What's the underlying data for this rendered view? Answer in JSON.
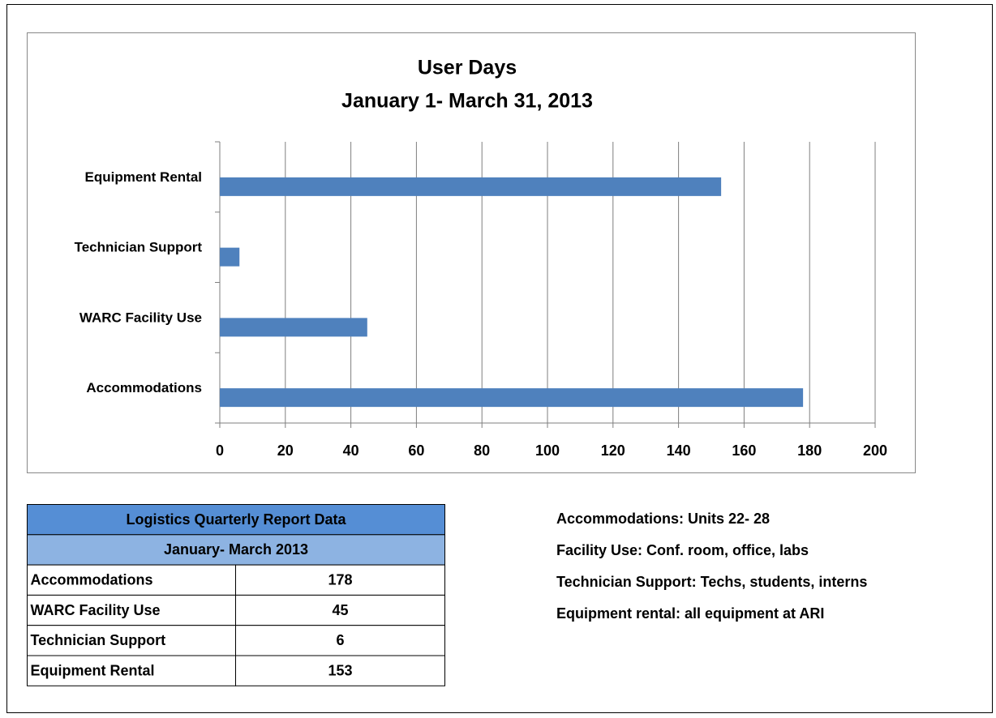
{
  "chart_data": {
    "type": "bar",
    "orientation": "horizontal",
    "title": "User Days",
    "subtitle": "January 1- March 31, 2013",
    "categories": [
      "Accommodations",
      "WARC Facility Use",
      "Technician Support",
      "Equipment Rental"
    ],
    "values": [
      178,
      45,
      6,
      153
    ],
    "color": "#4f81bd",
    "xlim": [
      0,
      200
    ],
    "xticks": [
      0,
      20,
      40,
      60,
      80,
      100,
      120,
      140,
      160,
      180,
      200
    ],
    "grid": true
  },
  "table": {
    "title": "Logistics Quarterly Report Data",
    "subtitle": "January- March 2013",
    "rows": [
      [
        "Accommodations",
        178
      ],
      [
        "WARC Facility Use",
        45
      ],
      [
        "Technician Support",
        6
      ],
      [
        "Equipment Rental",
        153
      ]
    ]
  },
  "notes": [
    "Accommodations: Units 22- 28",
    "Facility Use: Conf. room, office, labs",
    "Technician Support: Techs, students, interns",
    "Equipment rental: all equipment at ARI"
  ]
}
